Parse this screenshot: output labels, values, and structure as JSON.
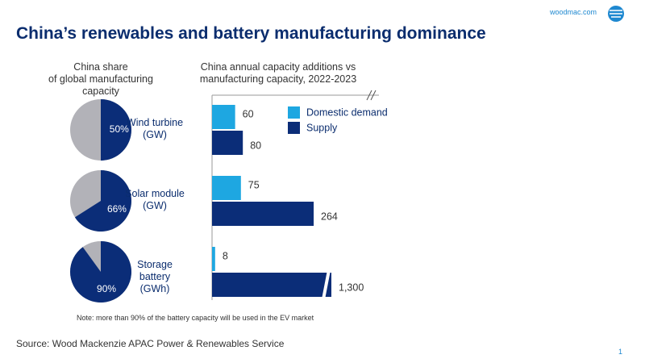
{
  "header": {
    "title": "China’s renewables and battery manufacturing dominance",
    "site": "woodmac.com",
    "page": "1"
  },
  "chart_data": [
    {
      "type": "pie",
      "title": "China share\nof global manufacturing\ncapacity",
      "values": [
        50,
        66,
        90
      ],
      "value_labels": [
        "50%",
        "66%",
        "90%"
      ],
      "color": "#0b2d78",
      "rest_color": "#b2b2b8"
    },
    {
      "type": "bar",
      "orientation": "horizontal",
      "title": "China annual capacity additions vs\nmanufacturing capacity, 2022-2023",
      "categories": [
        "Wind turbine\n(GW)",
        "Solar module\n(GW)",
        "Storage battery\n(GWh)"
      ],
      "series": [
        {
          "name": "Domestic demand",
          "color": "#1ea7e1",
          "values": [
            60,
            75,
            8
          ]
        },
        {
          "name": "Supply",
          "color": "#0b2d78",
          "values": [
            80,
            264,
            1300
          ],
          "value_labels": [
            "80",
            "264",
            "1,300"
          ]
        }
      ],
      "xlim": [
        0,
        310
      ],
      "axis_break": true,
      "legend": "top-right"
    }
  ],
  "footer": {
    "note": "Note: more than 90% of the battery capacity will be used in the EV market",
    "source": "Source: Wood Mackenzie APAC Power & Renewables Service"
  }
}
